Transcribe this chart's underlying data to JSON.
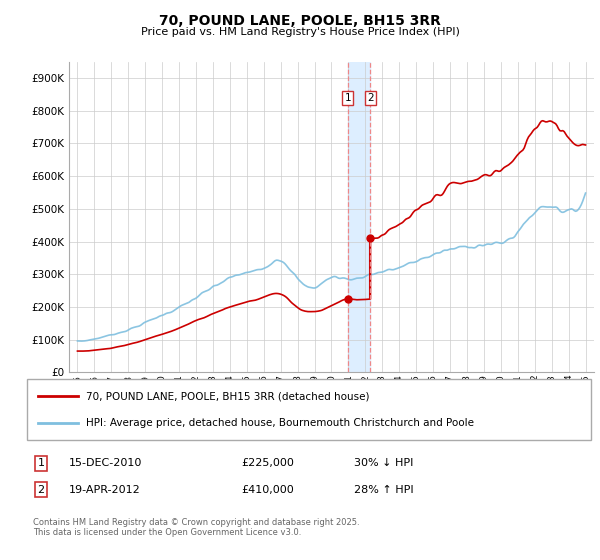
{
  "title": "70, POUND LANE, POOLE, BH15 3RR",
  "subtitle": "Price paid vs. HM Land Registry's House Price Index (HPI)",
  "ylabel_ticks": [
    "£0",
    "£100K",
    "£200K",
    "£300K",
    "£400K",
    "£500K",
    "£600K",
    "£700K",
    "£800K",
    "£900K"
  ],
  "ytick_values": [
    0,
    100000,
    200000,
    300000,
    400000,
    500000,
    600000,
    700000,
    800000,
    900000
  ],
  "ylim": [
    0,
    950000
  ],
  "xlim_start": 1994.5,
  "xlim_end": 2025.5,
  "xtick_years": [
    1995,
    1996,
    1997,
    1998,
    1999,
    2000,
    2001,
    2002,
    2003,
    2004,
    2005,
    2006,
    2007,
    2008,
    2009,
    2010,
    2011,
    2012,
    2013,
    2014,
    2015,
    2016,
    2017,
    2018,
    2019,
    2020,
    2021,
    2022,
    2023,
    2024,
    2025
  ],
  "hpi_line_color": "#7fbfdf",
  "price_line_color": "#cc0000",
  "sale1_date": 2010.96,
  "sale1_price": 225000,
  "sale2_date": 2012.3,
  "sale2_price": 410000,
  "legend_line1": "70, POUND LANE, POOLE, BH15 3RR (detached house)",
  "legend_line2": "HPI: Average price, detached house, Bournemouth Christchurch and Poole",
  "table_row1": [
    "1",
    "15-DEC-2010",
    "£225,000",
    "30% ↓ HPI"
  ],
  "table_row2": [
    "2",
    "19-APR-2012",
    "£410,000",
    "28% ↑ HPI"
  ],
  "footer": "Contains HM Land Registry data © Crown copyright and database right 2025.\nThis data is licensed under the Open Government Licence v3.0.",
  "bg_color": "#ffffff",
  "grid_color": "#cccccc",
  "highlight_rect_color": "#ddeeff",
  "vertical_line_color": "#ee8888",
  "label_box_color": "#cc3333"
}
